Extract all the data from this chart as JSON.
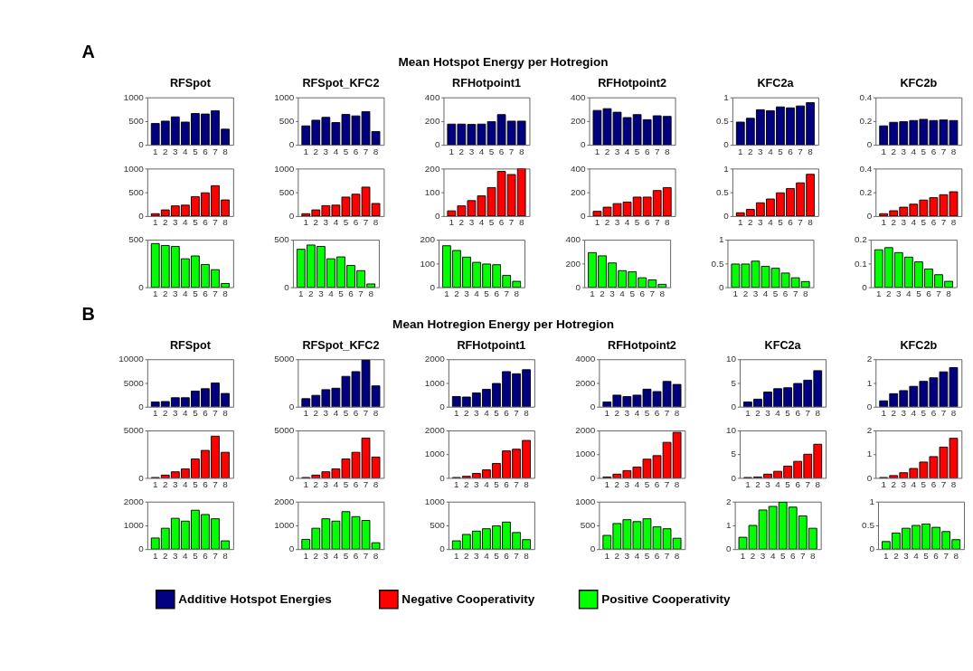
{
  "chart_data": [
    {
      "type": "other",
      "title": "Mean Hotspot Energy per Hotregion",
      "annotations": [
        "A"
      ]
    },
    {
      "type": "bar",
      "title": "RFSpot",
      "categories": [
        "1",
        "2",
        "3",
        "4",
        "5",
        "6",
        "7",
        "8"
      ],
      "series": [
        {
          "name": "Additive  Hotspot Energies",
          "color": "#000080",
          "values": [
            450,
            500,
            590,
            480,
            660,
            650,
            720,
            330
          ]
        }
      ],
      "ylim": [
        0,
        1000
      ],
      "yticks": [
        0,
        500,
        1000
      ],
      "legend": "bottom"
    },
    {
      "type": "bar",
      "title": "RFSpot_KFC2",
      "categories": [
        "1",
        "2",
        "3",
        "4",
        "5",
        "6",
        "7",
        "8"
      ],
      "series": [
        {
          "name": "Additive  Hotspot Energies",
          "color": "#000080",
          "values": [
            400,
            520,
            580,
            470,
            640,
            610,
            700,
            280
          ]
        }
      ],
      "ylim": [
        0,
        1000
      ],
      "yticks": [
        0,
        500,
        1000
      ],
      "legend": "bottom"
    },
    {
      "type": "bar",
      "title": "RFHotpoint1",
      "categories": [
        "1",
        "2",
        "3",
        "4",
        "5",
        "6",
        "7",
        "8"
      ],
      "series": [
        {
          "name": "Additive  Hotspot Energies",
          "color": "#000080",
          "values": [
            175,
            175,
            172,
            175,
            195,
            255,
            200,
            200
          ]
        }
      ],
      "ylim": [
        0,
        400
      ],
      "yticks": [
        0,
        200,
        400
      ],
      "legend": "bottom"
    },
    {
      "type": "bar",
      "title": "RFHotpoint2",
      "categories": [
        "1",
        "2",
        "3",
        "4",
        "5",
        "6",
        "7",
        "8"
      ],
      "series": [
        {
          "name": "Additive  Hotspot Energies",
          "color": "#000080",
          "values": [
            290,
            305,
            275,
            230,
            255,
            212,
            245,
            240
          ]
        }
      ],
      "ylim": [
        0,
        400
      ],
      "yticks": [
        0,
        200,
        400
      ],
      "legend": "bottom"
    },
    {
      "type": "bar",
      "title": "KFC2a",
      "categories": [
        "1",
        "2",
        "3",
        "4",
        "5",
        "6",
        "7",
        "8"
      ],
      "series": [
        {
          "name": "Additive  Hotspot Energies",
          "color": "#000080",
          "values": [
            0.48,
            0.56,
            0.74,
            0.72,
            0.8,
            0.78,
            0.82,
            0.89
          ]
        }
      ],
      "ylim": [
        0,
        1
      ],
      "yticks": [
        0,
        0.5,
        1
      ],
      "legend": "bottom"
    },
    {
      "type": "bar",
      "title": "KFC2b",
      "categories": [
        "1",
        "2",
        "3",
        "4",
        "5",
        "6",
        "7",
        "8"
      ],
      "series": [
        {
          "name": "Additive  Hotspot Energies",
          "color": "#000080",
          "values": [
            0.16,
            0.19,
            0.195,
            0.205,
            0.215,
            0.205,
            0.21,
            0.205
          ]
        }
      ],
      "ylim": [
        0,
        0.4
      ],
      "yticks": [
        0,
        0.2,
        0.4
      ],
      "legend": "bottom"
    },
    {
      "type": "bar",
      "categories": [
        "1",
        "2",
        "3",
        "4",
        "5",
        "6",
        "7",
        "8"
      ],
      "series": [
        {
          "name": "Negative Cooperativity",
          "color": "#ff0000",
          "values": [
            50,
            130,
            215,
            230,
            410,
            490,
            640,
            340
          ]
        }
      ],
      "ylim": [
        0,
        1000
      ],
      "yticks": [
        0,
        500,
        1000
      ],
      "legend": "bottom"
    },
    {
      "type": "bar",
      "categories": [
        "1",
        "2",
        "3",
        "4",
        "5",
        "6",
        "7",
        "8"
      ],
      "series": [
        {
          "name": "Negative Cooperativity",
          "color": "#ff0000",
          "values": [
            50,
            130,
            220,
            230,
            400,
            460,
            610,
            265
          ]
        }
      ],
      "ylim": [
        0,
        1000
      ],
      "yticks": [
        0,
        500,
        1000
      ],
      "legend": "bottom"
    },
    {
      "type": "bar",
      "categories": [
        "1",
        "2",
        "3",
        "4",
        "5",
        "6",
        "7",
        "8"
      ],
      "series": [
        {
          "name": "Negative Cooperativity",
          "color": "#ff0000",
          "values": [
            22,
            43,
            65,
            85,
            120,
            188,
            175,
            200
          ]
        }
      ],
      "ylim": [
        0,
        200
      ],
      "yticks": [
        0,
        100,
        200
      ],
      "legend": "bottom"
    },
    {
      "type": "bar",
      "categories": [
        "1",
        "2",
        "3",
        "4",
        "5",
        "6",
        "7",
        "8"
      ],
      "series": [
        {
          "name": "Negative Cooperativity",
          "color": "#ff0000",
          "values": [
            40,
            75,
            105,
            118,
            160,
            160,
            215,
            240
          ]
        }
      ],
      "ylim": [
        0,
        400
      ],
      "yticks": [
        0,
        200,
        400
      ],
      "legend": "bottom"
    },
    {
      "type": "bar",
      "categories": [
        "1",
        "2",
        "3",
        "4",
        "5",
        "6",
        "7",
        "8"
      ],
      "series": [
        {
          "name": "Negative Cooperativity",
          "color": "#ff0000",
          "values": [
            0.07,
            0.14,
            0.28,
            0.36,
            0.49,
            0.58,
            0.7,
            0.88
          ]
        }
      ],
      "ylim": [
        0,
        1
      ],
      "yticks": [
        0,
        0.5,
        1
      ],
      "legend": "bottom"
    },
    {
      "type": "bar",
      "categories": [
        "1",
        "2",
        "3",
        "4",
        "5",
        "6",
        "7",
        "8"
      ],
      "series": [
        {
          "name": "Negative Cooperativity",
          "color": "#ff0000",
          "values": [
            0.02,
            0.045,
            0.075,
            0.1,
            0.135,
            0.155,
            0.18,
            0.205
          ]
        }
      ],
      "ylim": [
        0,
        0.4
      ],
      "yticks": [
        0,
        0.2,
        0.4
      ],
      "legend": "bottom"
    },
    {
      "type": "bar",
      "categories": [
        "1",
        "2",
        "3",
        "4",
        "5",
        "6",
        "7",
        "8"
      ],
      "series": [
        {
          "name": "Positive Cooperativity",
          "color": "#00ff00",
          "values": [
            460,
            440,
            430,
            300,
            330,
            240,
            185,
            40
          ]
        }
      ],
      "ylim": [
        0,
        500
      ],
      "yticks": [
        0,
        500
      ],
      "legend": "bottom"
    },
    {
      "type": "bar",
      "categories": [
        "1",
        "2",
        "3",
        "4",
        "5",
        "6",
        "7",
        "8"
      ],
      "series": [
        {
          "name": "Positive Cooperativity",
          "color": "#00ff00",
          "values": [
            400,
            445,
            430,
            300,
            320,
            230,
            175,
            35
          ]
        }
      ],
      "ylim": [
        0,
        500
      ],
      "yticks": [
        0,
        500
      ],
      "legend": "bottom"
    },
    {
      "type": "bar",
      "categories": [
        "1",
        "2",
        "3",
        "4",
        "5",
        "6",
        "7",
        "8"
      ],
      "series": [
        {
          "name": "Positive Cooperativity",
          "color": "#00ff00",
          "values": [
            175,
            155,
            127,
            105,
            98,
            95,
            50,
            25
          ]
        }
      ],
      "ylim": [
        0,
        200
      ],
      "yticks": [
        0,
        100,
        200
      ],
      "legend": "bottom"
    },
    {
      "type": "bar",
      "categories": [
        "1",
        "2",
        "3",
        "4",
        "5",
        "6",
        "7",
        "8"
      ],
      "series": [
        {
          "name": "Positive Cooperativity",
          "color": "#00ff00",
          "values": [
            292,
            265,
            205,
            140,
            130,
            80,
            62,
            25
          ]
        }
      ],
      "ylim": [
        0,
        400
      ],
      "yticks": [
        0,
        200,
        400
      ],
      "legend": "bottom"
    },
    {
      "type": "bar",
      "categories": [
        "1",
        "2",
        "3",
        "4",
        "5",
        "6",
        "7",
        "8"
      ],
      "series": [
        {
          "name": "Positive Cooperativity",
          "color": "#00ff00",
          "values": [
            0.49,
            0.49,
            0.55,
            0.44,
            0.4,
            0.3,
            0.2,
            0.12
          ]
        }
      ],
      "ylim": [
        0,
        1
      ],
      "yticks": [
        0,
        0.5,
        1
      ],
      "legend": "bottom"
    },
    {
      "type": "bar",
      "categories": [
        "1",
        "2",
        "3",
        "4",
        "5",
        "6",
        "7",
        "8"
      ],
      "series": [
        {
          "name": "Positive Cooperativity",
          "color": "#00ff00",
          "values": [
            0.158,
            0.167,
            0.146,
            0.127,
            0.107,
            0.077,
            0.053,
            0.025
          ]
        }
      ],
      "ylim": [
        0,
        0.2
      ],
      "yticks": [
        0,
        0.1,
        0.2
      ],
      "legend": "bottom"
    },
    {
      "type": "other",
      "title": "Mean Hotregion Energy per Hotregion",
      "annotations": [
        "B"
      ]
    },
    {
      "type": "bar",
      "title": "RFSpot",
      "categories": [
        "1",
        "2",
        "3",
        "4",
        "5",
        "6",
        "7",
        "8"
      ],
      "series": [
        {
          "name": "Additive  Hotspot Energies",
          "color": "#000080",
          "values": [
            1000,
            1100,
            1900,
            1900,
            3300,
            3800,
            5000,
            2800
          ]
        }
      ],
      "ylim": [
        0,
        10000
      ],
      "yticks": [
        0,
        5000,
        10000
      ],
      "legend": "bottom"
    },
    {
      "type": "bar",
      "title": "RFSpot_KFC2",
      "categories": [
        "1",
        "2",
        "3",
        "4",
        "5",
        "6",
        "7",
        "8"
      ],
      "series": [
        {
          "name": "Additive  Hotspot Energies",
          "color": "#000080",
          "values": [
            850,
            1200,
            1800,
            1950,
            3200,
            3700,
            4900,
            2200
          ]
        }
      ],
      "ylim": [
        0,
        5000
      ],
      "yticks": [
        0,
        5000
      ],
      "legend": "bottom"
    },
    {
      "type": "bar",
      "title": "RFHotpoint1",
      "categories": [
        "1",
        "2",
        "3",
        "4",
        "5",
        "6",
        "7",
        "8"
      ],
      "series": [
        {
          "name": "Additive  Hotspot Energies",
          "color": "#000080",
          "values": [
            430,
            410,
            580,
            730,
            980,
            1480,
            1390,
            1560
          ]
        }
      ],
      "ylim": [
        0,
        2000
      ],
      "yticks": [
        0,
        1000,
        2000
      ],
      "legend": "bottom"
    },
    {
      "type": "bar",
      "title": "RFHotpoint2",
      "categories": [
        "1",
        "2",
        "3",
        "4",
        "5",
        "6",
        "7",
        "8"
      ],
      "series": [
        {
          "name": "Additive  Hotspot Energies",
          "color": "#000080",
          "values": [
            400,
            980,
            860,
            980,
            1480,
            1280,
            2130,
            1880
          ]
        }
      ],
      "ylim": [
        0,
        4000
      ],
      "yticks": [
        0,
        2000,
        4000
      ],
      "legend": "bottom"
    },
    {
      "type": "bar",
      "title": "KFC2a",
      "categories": [
        "1",
        "2",
        "3",
        "4",
        "5",
        "6",
        "7",
        "8"
      ],
      "series": [
        {
          "name": "Additive  Hotspot Energies",
          "color": "#000080",
          "values": [
            1.0,
            1.6,
            3.1,
            3.8,
            4.0,
            4.9,
            5.6,
            7.6
          ]
        }
      ],
      "ylim": [
        0,
        10
      ],
      "yticks": [
        0,
        5,
        10
      ],
      "legend": "bottom"
    },
    {
      "type": "bar",
      "title": "KFC2b",
      "categories": [
        "1",
        "2",
        "3",
        "4",
        "5",
        "6",
        "7",
        "8"
      ],
      "series": [
        {
          "name": "Additive  Hotspot Energies",
          "color": "#000080",
          "values": [
            0.25,
            0.55,
            0.68,
            0.86,
            1.07,
            1.22,
            1.47,
            1.65
          ]
        }
      ],
      "ylim": [
        0,
        2
      ],
      "yticks": [
        0,
        1,
        2
      ],
      "legend": "bottom"
    },
    {
      "type": "bar",
      "categories": [
        "1",
        "2",
        "3",
        "4",
        "5",
        "6",
        "7",
        "8"
      ],
      "series": [
        {
          "name": "Negative Cooperativity",
          "color": "#ff0000",
          "values": [
            50,
            300,
            650,
            950,
            2000,
            2900,
            4400,
            2700
          ]
        }
      ],
      "ylim": [
        0,
        5000
      ],
      "yticks": [
        0,
        5000
      ],
      "legend": "bottom"
    },
    {
      "type": "bar",
      "categories": [
        "1",
        "2",
        "3",
        "4",
        "5",
        "6",
        "7",
        "8"
      ],
      "series": [
        {
          "name": "Negative Cooperativity",
          "color": "#ff0000",
          "values": [
            50,
            300,
            650,
            950,
            2000,
            2700,
            4200,
            2200
          ]
        }
      ],
      "ylim": [
        0,
        5000
      ],
      "yticks": [
        0,
        5000
      ],
      "legend": "bottom"
    },
    {
      "type": "bar",
      "categories": [
        "1",
        "2",
        "3",
        "4",
        "5",
        "6",
        "7",
        "8"
      ],
      "series": [
        {
          "name": "Negative Cooperativity",
          "color": "#ff0000",
          "values": [
            20,
            70,
            190,
            340,
            610,
            1140,
            1210,
            1580
          ]
        }
      ],
      "ylim": [
        0,
        2000
      ],
      "yticks": [
        0,
        1000,
        2000
      ],
      "legend": "bottom"
    },
    {
      "type": "bar",
      "categories": [
        "1",
        "2",
        "3",
        "4",
        "5",
        "6",
        "7",
        "8"
      ],
      "series": [
        {
          "name": "Negative Cooperativity",
          "color": "#ff0000",
          "values": [
            40,
            160,
            310,
            460,
            790,
            940,
            1500,
            1920
          ]
        }
      ],
      "ylim": [
        0,
        2000
      ],
      "yticks": [
        0,
        1000,
        2000
      ],
      "legend": "bottom"
    },
    {
      "type": "bar",
      "categories": [
        "1",
        "2",
        "3",
        "4",
        "5",
        "6",
        "7",
        "8"
      ],
      "series": [
        {
          "name": "Negative Cooperativity",
          "color": "#ff0000",
          "values": [
            0.1,
            0.2,
            0.8,
            1.4,
            2.5,
            3.5,
            5.0,
            7.1
          ]
        }
      ],
      "ylim": [
        0,
        10
      ],
      "yticks": [
        0,
        5,
        10
      ],
      "legend": "bottom"
    },
    {
      "type": "bar",
      "categories": [
        "1",
        "2",
        "3",
        "4",
        "5",
        "6",
        "7",
        "8"
      ],
      "series": [
        {
          "name": "Negative Cooperativity",
          "color": "#ff0000",
          "values": [
            0.02,
            0.1,
            0.22,
            0.4,
            0.67,
            0.9,
            1.3,
            1.67
          ]
        }
      ],
      "ylim": [
        0,
        2
      ],
      "yticks": [
        0,
        1,
        2
      ],
      "legend": "bottom"
    },
    {
      "type": "bar",
      "categories": [
        "1",
        "2",
        "3",
        "4",
        "5",
        "6",
        "7",
        "8"
      ],
      "series": [
        {
          "name": "Positive Cooperativity",
          "color": "#00ff00",
          "values": [
            470,
            880,
            1300,
            1180,
            1640,
            1460,
            1280,
            350
          ]
        }
      ],
      "ylim": [
        0,
        2000
      ],
      "yticks": [
        0,
        1000,
        2000
      ],
      "legend": "bottom"
    },
    {
      "type": "bar",
      "categories": [
        "1",
        "2",
        "3",
        "4",
        "5",
        "6",
        "7",
        "8"
      ],
      "series": [
        {
          "name": "Positive Cooperativity",
          "color": "#00ff00",
          "values": [
            410,
            880,
            1280,
            1180,
            1580,
            1370,
            1210,
            270
          ]
        }
      ],
      "ylim": [
        0,
        2000
      ],
      "yticks": [
        0,
        1000,
        2000
      ],
      "legend": "bottom"
    },
    {
      "type": "bar",
      "categories": [
        "1",
        "2",
        "3",
        "4",
        "5",
        "6",
        "7",
        "8"
      ],
      "series": [
        {
          "name": "Positive Cooperativity",
          "color": "#00ff00",
          "values": [
            175,
            310,
            380,
            430,
            490,
            570,
            350,
            200
          ]
        }
      ],
      "ylim": [
        0,
        1000
      ],
      "yticks": [
        0,
        500,
        1000
      ],
      "legend": "bottom"
    },
    {
      "type": "bar",
      "categories": [
        "1",
        "2",
        "3",
        "4",
        "5",
        "6",
        "7",
        "8"
      ],
      "series": [
        {
          "name": "Positive Cooperativity",
          "color": "#00ff00",
          "values": [
            290,
            540,
            620,
            580,
            640,
            470,
            430,
            230
          ]
        }
      ],
      "ylim": [
        0,
        1000
      ],
      "yticks": [
        0,
        500,
        1000
      ],
      "legend": "bottom"
    },
    {
      "type": "bar",
      "categories": [
        "1",
        "2",
        "3",
        "4",
        "5",
        "6",
        "7",
        "8"
      ],
      "series": [
        {
          "name": "Positive Cooperativity",
          "color": "#00ff00",
          "values": [
            0.5,
            1.0,
            1.65,
            1.8,
            1.98,
            1.77,
            1.4,
            0.88
          ]
        }
      ],
      "ylim": [
        0,
        2
      ],
      "yticks": [
        0,
        1,
        2
      ],
      "legend": "bottom"
    },
    {
      "type": "bar",
      "categories": [
        "1",
        "2",
        "3",
        "4",
        "5",
        "6",
        "7",
        "8"
      ],
      "series": [
        {
          "name": "Positive Cooperativity",
          "color": "#00ff00",
          "values": [
            0.16,
            0.34,
            0.44,
            0.5,
            0.53,
            0.46,
            0.37,
            0.2
          ]
        }
      ],
      "ylim": [
        0,
        1
      ],
      "yticks": [
        0,
        0.5,
        1
      ],
      "legend": "bottom"
    }
  ]
}
